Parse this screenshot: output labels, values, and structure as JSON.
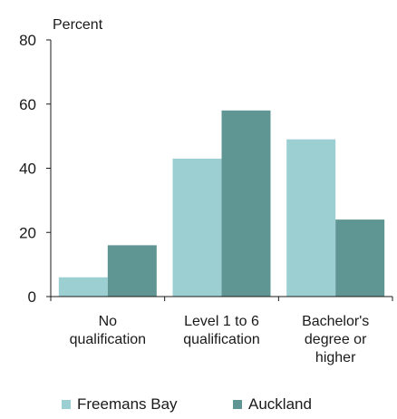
{
  "chart_data": {
    "type": "bar",
    "ylabel": "Percent",
    "ylim": [
      0,
      80
    ],
    "yticks": [
      0,
      20,
      40,
      60,
      80
    ],
    "categories": [
      [
        "No",
        "qualification"
      ],
      [
        "Level 1 to 6",
        "qualification"
      ],
      [
        "Bachelor's",
        "degree or",
        "higher"
      ]
    ],
    "series": [
      {
        "name": "Freemans Bay",
        "color": "#9ccfd1",
        "values": [
          6,
          43,
          49
        ]
      },
      {
        "name": "Auckland",
        "color": "#5f9694",
        "values": [
          16,
          58,
          24
        ]
      }
    ],
    "grid": false,
    "legend": "bottom"
  }
}
